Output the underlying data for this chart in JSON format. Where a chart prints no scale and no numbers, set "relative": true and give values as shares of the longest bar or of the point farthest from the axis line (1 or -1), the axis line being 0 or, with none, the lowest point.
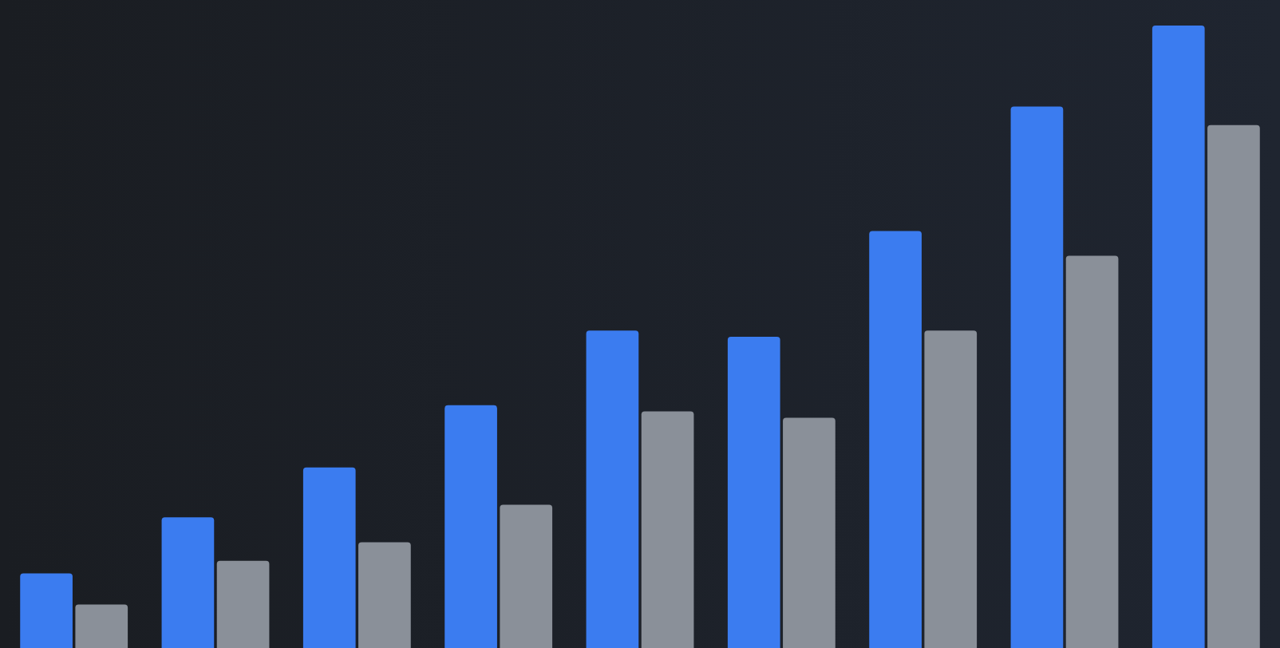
{
  "chart_data": {
    "type": "bar",
    "relative": true,
    "categories": [
      null,
      null,
      null,
      null,
      null,
      null,
      null,
      null,
      null
    ],
    "legend": false,
    "series": [
      {
        "color": "#3b7cf0",
        "values": [
          0.12,
          0.21,
          0.29,
          0.39,
          0.51,
          0.5,
          0.67,
          0.87,
          1
        ]
      },
      {
        "color": "#8a9099",
        "values": [
          0.07,
          0.14,
          0.17,
          0.23,
          0.38,
          0.37,
          0.51,
          0.63,
          0.84
        ]
      }
    ]
  }
}
